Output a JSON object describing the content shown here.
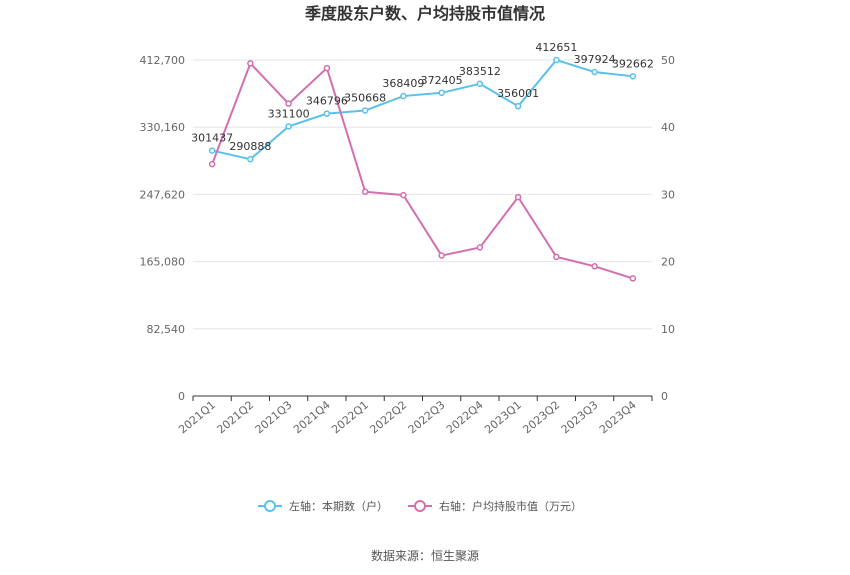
{
  "chart_data": {
    "type": "line",
    "title": "季度股东户数、户均持股市值情况",
    "categories": [
      "2021Q1",
      "2021Q2",
      "2021Q3",
      "2021Q4",
      "2022Q1",
      "2022Q2",
      "2022Q3",
      "2022Q4",
      "2023Q1",
      "2023Q2",
      "2023Q3",
      "2023Q4"
    ],
    "series": [
      {
        "name": "左轴：本期数（户）",
        "axis": "left",
        "color": "#5bc0eb",
        "values": [
          301437,
          290888,
          331100,
          346796,
          350668,
          368409,
          372405,
          383512,
          356001,
          412651,
          397924,
          392662
        ],
        "labels": [
          "301437",
          "290888",
          "331100",
          "346796",
          "350668",
          "368409",
          "372405",
          "383512",
          "356001",
          "412651",
          "397924",
          "392662"
        ]
      },
      {
        "name": "右轴：户均持股市值（万元）",
        "axis": "right",
        "color": "#d36fae",
        "values": [
          34.5,
          49.5,
          43.5,
          48.8,
          30.4,
          29.9,
          20.9,
          22.1,
          29.6,
          20.7,
          19.3,
          17.5
        ]
      }
    ],
    "left_axis": {
      "ticks": [
        0,
        82540,
        165080,
        247620,
        330160,
        412700
      ],
      "tick_labels": [
        "0",
        "82,540",
        "165,080",
        "247,620",
        "330,160",
        "412,700"
      ],
      "range": [
        0,
        412700
      ]
    },
    "right_axis": {
      "ticks": [
        0,
        10,
        20,
        30,
        40,
        50
      ],
      "tick_labels": [
        "0",
        "10",
        "20",
        "30",
        "40",
        "50"
      ],
      "range": [
        0,
        50
      ]
    },
    "legend_position": "bottom",
    "grid": true,
    "source": "数据来源：恒生聚源"
  }
}
